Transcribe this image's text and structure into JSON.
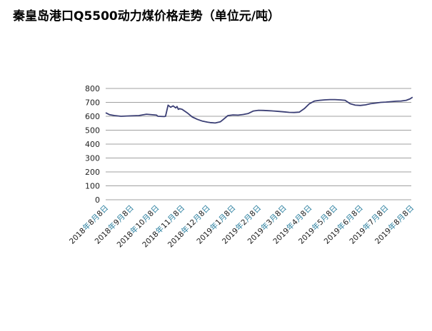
{
  "chart_data": {
    "type": "line",
    "title": "秦皇岛港口Q5500动力煤价格走势（单位元/吨）",
    "xlabel": "",
    "ylabel": "",
    "ylim": [
      0,
      800
    ],
    "yticks": [
      0,
      100,
      200,
      300,
      400,
      500,
      600,
      700,
      800
    ],
    "grid": true,
    "legend": "none",
    "colors": {
      "line": "#3b3f75",
      "grid": "#a0a0a0",
      "date_digits": "#1a1a1a",
      "date_chars": "#2a7f9f"
    },
    "categories": [
      "2018年8月8日",
      "2018年9月8日",
      "2018年10月8日",
      "2018年11月8日",
      "2018年12月8日",
      "2019年1月8日",
      "2019年2月8日",
      "2019年3月8日",
      "2019年4月8日",
      "2019年5月8日",
      "2019年6月8日",
      "2019年7月8日",
      "2019年8月8日"
    ],
    "series": [
      {
        "x": [
          0,
          0.15,
          0.35,
          0.6,
          1,
          1.3,
          1.6,
          2,
          2.05,
          2.3,
          2.35,
          2.45,
          2.55,
          2.65,
          2.75,
          2.8,
          2.85,
          2.9,
          3,
          3.2,
          3.3,
          3.4,
          3.6,
          3.8,
          4,
          4.1,
          4.3,
          4.5,
          4.6,
          4.8,
          5,
          5.2,
          5.4,
          5.6,
          5.8,
          6,
          6.2,
          6.4,
          6.6,
          6.8,
          7,
          7.2,
          7.4,
          7.6,
          7.8,
          8,
          8.2,
          8.4,
          8.6,
          8.8,
          9,
          9.2,
          9.4,
          9.6,
          9.8,
          10,
          10.2,
          10.4,
          10.6,
          10.8,
          11,
          11.2,
          11.4,
          11.6,
          11.8,
          11.95,
          12.05
        ],
        "values": [
          625,
          612,
          605,
          600,
          603,
          605,
          615,
          608,
          600,
          598,
          600,
          680,
          665,
          675,
          660,
          670,
          650,
          655,
          650,
          625,
          610,
          595,
          578,
          565,
          558,
          555,
          552,
          560,
          575,
          605,
          610,
          608,
          613,
          620,
          638,
          643,
          642,
          640,
          638,
          635,
          632,
          628,
          627,
          630,
          655,
          690,
          710,
          715,
          718,
          720,
          720,
          718,
          715,
          690,
          680,
          678,
          682,
          690,
          695,
          700,
          702,
          705,
          708,
          710,
          715,
          725,
          737
        ]
      }
    ]
  }
}
